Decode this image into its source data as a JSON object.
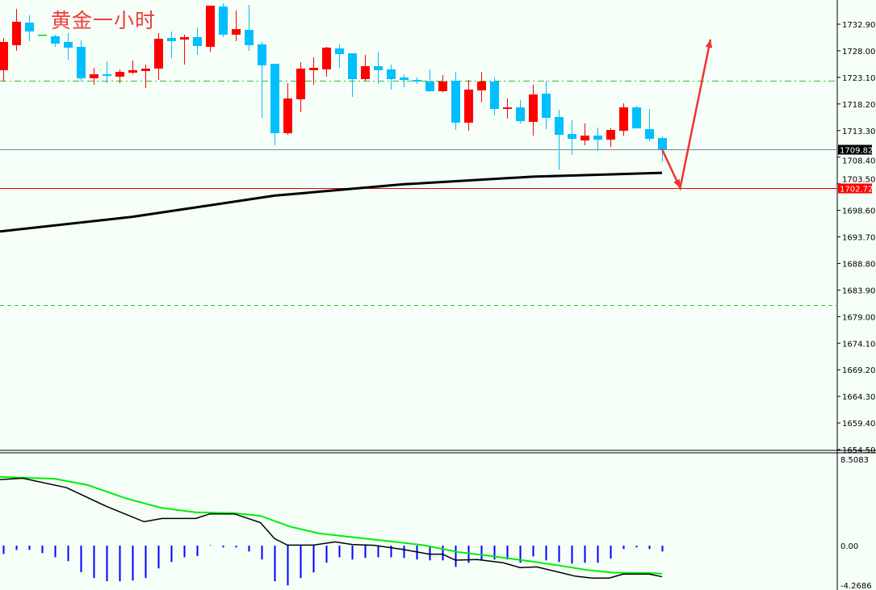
{
  "chart_data": {
    "type": "candlestick",
    "title": "黄金一小时",
    "colors": {
      "up": "#ff0000",
      "down": "#00bfff",
      "doji": "#00dd00",
      "ma": "#000000",
      "macd": "#000000",
      "signal": "#00ee00",
      "histogram": "#0000ff",
      "arrow": "#ee3333",
      "background": "#f5fff8"
    },
    "price_axis": {
      "ylim": [
        1654.5,
        1736.9
      ],
      "ticks": [
        "1732.90",
        "1728.00",
        "1723.10",
        "1718.20",
        "1713.30",
        "1708.40",
        "1703.50",
        "1698.60",
        "1693.70",
        "1688.80",
        "1683.90",
        "1679.00",
        "1674.10",
        "1669.20",
        "1664.30",
        "1659.40",
        "1654.50"
      ]
    },
    "candles_ohlc": [
      [
        1724.42,
        1730.37,
        1722.34,
        1729.63
      ],
      [
        1729.03,
        1735.73,
        1727.99,
        1733.35
      ],
      [
        1733.2,
        1734.54,
        1729.78,
        1731.56
      ],
      [
        1730.97,
        1730.97,
        1730.97,
        1730.97
      ],
      [
        1730.67,
        1730.97,
        1728.73,
        1729.33
      ],
      [
        1729.63,
        1731.26,
        1726.35,
        1728.58
      ],
      [
        1728.73,
        1729.92,
        1722.34,
        1722.93
      ],
      [
        1722.93,
        1724.86,
        1721.74,
        1723.67
      ],
      [
        1723.67,
        1726.06,
        1722.04,
        1723.38
      ],
      [
        1723.23,
        1724.57,
        1722.04,
        1724.12
      ],
      [
        1723.97,
        1726.2,
        1723.67,
        1724.42
      ],
      [
        1724.27,
        1725.46,
        1721.14,
        1724.72
      ],
      [
        1724.72,
        1731.26,
        1722.63,
        1730.22
      ],
      [
        1730.37,
        1731.56,
        1726.65,
        1729.78
      ],
      [
        1730.07,
        1730.97,
        1725.46,
        1730.52
      ],
      [
        1730.52,
        1732.3,
        1727.25,
        1728.88
      ],
      [
        1728.73,
        1736.32,
        1727.84,
        1736.32
      ],
      [
        1736.17,
        1736.77,
        1730.52,
        1730.97
      ],
      [
        1730.97,
        1735.43,
        1729.78,
        1732.0
      ],
      [
        1731.86,
        1736.47,
        1727.99,
        1729.03
      ],
      [
        1729.18,
        1729.63,
        1715.64,
        1725.31
      ],
      [
        1725.61,
        1725.61,
        1710.58,
        1712.81
      ],
      [
        1712.81,
        1722.04,
        1712.51,
        1719.21
      ],
      [
        1719.06,
        1725.91,
        1716.68,
        1724.72
      ],
      [
        1724.42,
        1726.8,
        1721.74,
        1724.86
      ],
      [
        1724.57,
        1728.73,
        1723.23,
        1728.58
      ],
      [
        1728.44,
        1729.18,
        1724.86,
        1727.39
      ],
      [
        1727.54,
        1727.54,
        1719.51,
        1722.78
      ],
      [
        1722.78,
        1727.25,
        1722.48,
        1725.16
      ],
      [
        1725.16,
        1727.69,
        1721.89,
        1724.42
      ],
      [
        1724.57,
        1725.46,
        1720.85,
        1722.78
      ],
      [
        1723.08,
        1723.67,
        1721.29,
        1722.63
      ],
      [
        1722.63,
        1723.08,
        1721.89,
        1722.34
      ],
      [
        1722.34,
        1724.57,
        1720.4,
        1720.55
      ],
      [
        1720.55,
        1723.53,
        1720.4,
        1722.34
      ],
      [
        1722.48,
        1724.12,
        1713.41,
        1714.75
      ],
      [
        1714.75,
        1722.63,
        1713.26,
        1720.85
      ],
      [
        1720.7,
        1724.12,
        1718.47,
        1722.34
      ],
      [
        1722.34,
        1723.08,
        1716.09,
        1717.28
      ],
      [
        1717.28,
        1719.21,
        1715.49,
        1717.57
      ],
      [
        1717.57,
        1718.91,
        1714.6,
        1715.04
      ],
      [
        1714.9,
        1721.74,
        1712.37,
        1719.95
      ],
      [
        1720.1,
        1722.48,
        1713.56,
        1715.64
      ],
      [
        1715.79,
        1717.13,
        1706.12,
        1712.51
      ],
      [
        1712.66,
        1715.19,
        1708.79,
        1711.77
      ],
      [
        1711.47,
        1714.6,
        1710.58,
        1712.37
      ],
      [
        1712.37,
        1713.85,
        1709.54,
        1711.62
      ],
      [
        1711.62,
        1713.7,
        1710.28,
        1713.41
      ],
      [
        1713.26,
        1718.32,
        1712.37,
        1717.57
      ],
      [
        1717.57,
        1717.87,
        1713.7,
        1713.7
      ],
      [
        1713.56,
        1717.28,
        1711.32,
        1711.77
      ],
      [
        1711.92,
        1712.22,
        1707.6,
        1709.84
      ]
    ],
    "moving_average": [
      [
        0,
        1694.7
      ],
      [
        10,
        1697.4
      ],
      [
        21,
        1701.3
      ],
      [
        31,
        1703.4
      ],
      [
        41,
        1704.8
      ],
      [
        51,
        1705.5
      ]
    ],
    "horizontal_lines": [
      {
        "price": 1722.48,
        "style": "dash-dot",
        "color": "#33bb33"
      },
      {
        "price": 1681.1,
        "style": "dashed",
        "color": "#33bb33"
      },
      {
        "price": 1709.82,
        "style": "solid",
        "color": "#778899",
        "label": "1709.82",
        "label_bg": "#000000"
      },
      {
        "price": 1702.72,
        "style": "solid",
        "color": "#dd0000",
        "label": "1702.72",
        "label_bg": "#ff0000"
      }
    ],
    "forecast_arrow": [
      [
        51,
        1709.84
      ],
      [
        52.4,
        1702.72
      ],
      [
        54.75,
        1730.1
      ]
    ],
    "macd": {
      "ylim": [
        -4.7,
        8.5083
      ],
      "tick_labels": [
        "8.5083",
        "0.00",
        "-4.2686"
      ],
      "tick_values": [
        8.5083,
        0,
        -4.2686
      ],
      "histogram": [
        -0.82,
        -0.42,
        -0.42,
        -0.74,
        -1.14,
        -1.53,
        -2.61,
        -3.19,
        -3.51,
        -3.51,
        -3.43,
        -3.19,
        -2.24,
        -1.61,
        -1.14,
        -1.03,
        0.05,
        -0.18,
        -0.18,
        -0.58,
        -1.37,
        -3.51,
        -3.91,
        -3.19,
        -2.64,
        -1.69,
        -1.14,
        -1.37,
        -1.21,
        -1.14,
        -1.14,
        -1.21,
        -1.37,
        -1.45,
        -1.45,
        -2.09,
        -1.69,
        -1.45,
        -1.37,
        -1.37,
        -1.69,
        -1.06,
        -1.45,
        -1.61,
        -1.77,
        -1.69,
        -1.69,
        -1.29,
        -0.34,
        -0.18,
        -0.34,
        -0.58
      ],
      "macd_line": [
        [
          0,
          6.49
        ],
        [
          1.5,
          6.63
        ],
        [
          4.9,
          5.7
        ],
        [
          8,
          3.85
        ],
        [
          10.9,
          2.35
        ],
        [
          12.3,
          2.67
        ],
        [
          14.9,
          2.67
        ],
        [
          16,
          3.12
        ],
        [
          17.9,
          3.12
        ],
        [
          19.9,
          2.27
        ],
        [
          21,
          0.69
        ],
        [
          22,
          0.05
        ],
        [
          24,
          0.05
        ],
        [
          25.7,
          0.37
        ],
        [
          27,
          0.11
        ],
        [
          28.7,
          0.03
        ],
        [
          30.9,
          -0.37
        ],
        [
          33,
          -0.84
        ],
        [
          34,
          -0.84
        ],
        [
          35,
          -1.43
        ],
        [
          36.7,
          -1.37
        ],
        [
          38.7,
          -1.69
        ],
        [
          40,
          -2.16
        ],
        [
          41.3,
          -2.09
        ],
        [
          43,
          -2.61
        ],
        [
          44.3,
          -3.01
        ],
        [
          45.6,
          -3.19
        ],
        [
          46.9,
          -3.19
        ],
        [
          48,
          -2.8
        ],
        [
          50,
          -2.8
        ],
        [
          51,
          -3.06
        ]
      ],
      "signal_line": [
        [
          0,
          6.76
        ],
        [
          4,
          6.57
        ],
        [
          6.5,
          5.97
        ],
        [
          9.5,
          4.65
        ],
        [
          12.2,
          3.72
        ],
        [
          14.9,
          3.27
        ],
        [
          17.9,
          3.19
        ],
        [
          19.9,
          2.93
        ],
        [
          22.2,
          1.87
        ],
        [
          24.4,
          1.21
        ],
        [
          26.5,
          0.9
        ],
        [
          30,
          0.42
        ],
        [
          32.6,
          0.03
        ],
        [
          35.2,
          -0.63
        ],
        [
          37.8,
          -1.03
        ],
        [
          40.9,
          -1.56
        ],
        [
          43,
          -1.95
        ],
        [
          45.2,
          -2.4
        ],
        [
          47.3,
          -2.67
        ],
        [
          50,
          -2.69
        ],
        [
          51,
          -2.77
        ]
      ]
    }
  }
}
